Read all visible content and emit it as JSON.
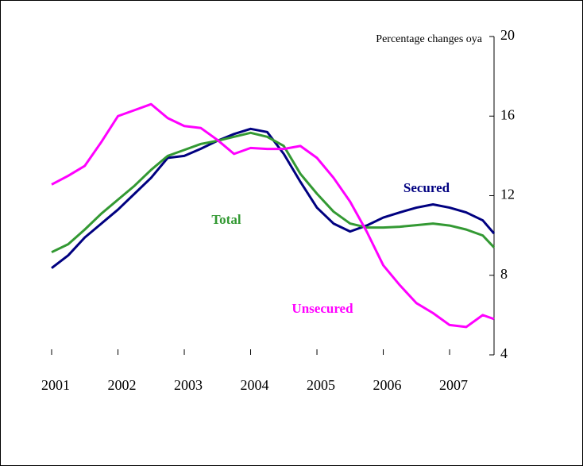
{
  "chart_data": {
    "type": "line",
    "y_axis_label": "Percentage changes oya",
    "x": [
      2001,
      2001.25,
      2001.5,
      2001.75,
      2002,
      2002.25,
      2002.5,
      2002.75,
      2003,
      2003.25,
      2003.5,
      2003.75,
      2004,
      2004.25,
      2004.5,
      2004.75,
      2005,
      2005.25,
      2005.5,
      2005.75,
      2006,
      2006.25,
      2006.5,
      2006.75,
      2007,
      2007.25,
      2007.5,
      2007.67
    ],
    "series": [
      {
        "name": "Secured",
        "color": "#000080",
        "values": [
          8.36,
          9.0,
          9.9,
          10.6,
          11.3,
          12.1,
          12.9,
          13.9,
          14.0,
          14.36,
          14.76,
          15.1,
          15.36,
          15.2,
          14.1,
          12.7,
          11.4,
          10.6,
          10.2,
          10.5,
          10.9,
          11.16,
          11.4,
          11.56,
          11.4,
          11.16,
          10.76,
          10.1
        ]
      },
      {
        "name": "Total",
        "color": "#339933",
        "values": [
          9.16,
          9.56,
          10.3,
          11.1,
          11.8,
          12.5,
          13.3,
          14.0,
          14.3,
          14.6,
          14.76,
          14.96,
          15.16,
          14.96,
          14.5,
          13.1,
          12.1,
          11.2,
          10.6,
          10.4,
          10.4,
          10.44,
          10.52,
          10.6,
          10.5,
          10.3,
          10.0,
          9.4
        ]
      },
      {
        "name": "Unsecured",
        "color": "#ff00ff",
        "values": [
          12.56,
          13.0,
          13.5,
          14.7,
          16.0,
          16.3,
          16.6,
          15.9,
          15.5,
          15.4,
          14.8,
          14.1,
          14.4,
          14.35,
          14.35,
          14.5,
          13.9,
          12.9,
          11.7,
          10.2,
          8.5,
          7.5,
          6.6,
          6.1,
          5.5,
          5.4,
          6.0,
          5.8
        ]
      }
    ],
    "xlim": [
      2001,
      2007.67
    ],
    "xticks": [
      2001,
      2002,
      2003,
      2004,
      2005,
      2006,
      2007
    ],
    "ylim": [
      4,
      20
    ],
    "yticks": [
      4,
      8,
      12,
      16,
      20
    ],
    "y_axis_side": "right",
    "grid": false
  }
}
